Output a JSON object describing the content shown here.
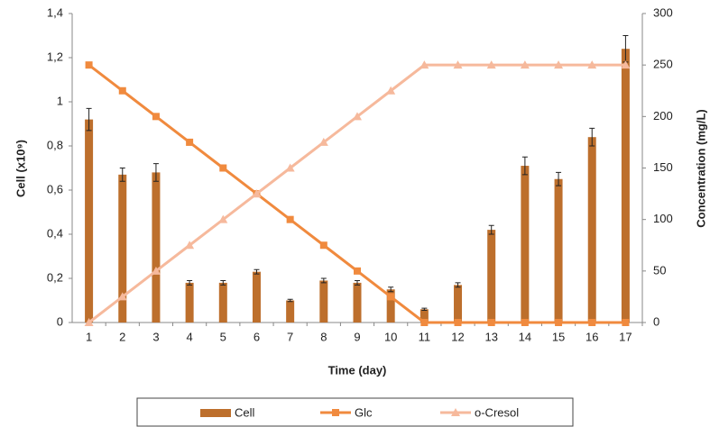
{
  "chart_data": {
    "type": "bar-line",
    "categories": [
      "1",
      "2",
      "3",
      "4",
      "5",
      "6",
      "7",
      "8",
      "9",
      "10",
      "11",
      "12",
      "13",
      "14",
      "15",
      "16",
      "17"
    ],
    "x_label": "Time (day)",
    "y_label": "Cell (x10⁹)",
    "y2_label": "Concentration (mg/L)",
    "ylim": [
      0,
      1.4
    ],
    "yticks": [
      0,
      {
        "value": 0.2,
        "label": "0,2"
      },
      {
        "value": 0.4,
        "label": "0,4"
      },
      {
        "value": 0.6,
        "label": "0,6"
      },
      {
        "value": 0.8,
        "label": "0,8"
      },
      1,
      {
        "value": 1.2,
        "label": "1,2"
      },
      {
        "value": 1.4,
        "label": "1,4"
      }
    ],
    "y2lim": [
      0,
      300
    ],
    "y2ticks": [
      0,
      50,
      100,
      150,
      200,
      250,
      300
    ],
    "series": [
      {
        "name": "Cell",
        "type": "bar",
        "color": "#bd6f2c",
        "values": [
          0.92,
          0.67,
          0.68,
          0.18,
          0.18,
          0.23,
          0.1,
          0.19,
          0.18,
          0.15,
          0.06,
          0.17,
          0.42,
          0.71,
          0.65,
          0.84,
          1.24
        ],
        "errors": [
          0.05,
          0.03,
          0.04,
          0.01,
          0.01,
          0.01,
          0.005,
          0.01,
          0.01,
          0.01,
          0.005,
          0.01,
          0.02,
          0.04,
          0.03,
          0.04,
          0.06
        ]
      },
      {
        "name": "Glc",
        "type": "line",
        "marker": "square",
        "axis": "y2",
        "color": "#f08a3e",
        "values": [
          250,
          225,
          200,
          175,
          150,
          125,
          100,
          75,
          50,
          25,
          0,
          0,
          0,
          0,
          0,
          0,
          0
        ]
      },
      {
        "name": "o-Cresol",
        "type": "line",
        "marker": "triangle",
        "axis": "y2",
        "color": "#f6b99c",
        "values": [
          0,
          25,
          50,
          75,
          100,
          125,
          150,
          175,
          200,
          225,
          250,
          250,
          250,
          250,
          250,
          250,
          250
        ]
      }
    ]
  }
}
